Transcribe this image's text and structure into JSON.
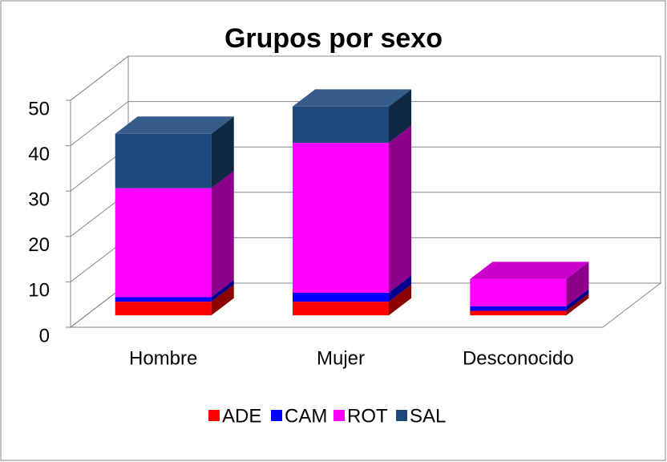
{
  "chart_data": {
    "type": "bar3d_stacked",
    "title": "Grupos por sexo",
    "categories": [
      "Hombre",
      "Mujer",
      "Desconocido"
    ],
    "series": [
      {
        "name": "ADE",
        "color": "#ff0000",
        "values": [
          3,
          3,
          1
        ]
      },
      {
        "name": "CAM",
        "color": "#0000ff",
        "values": [
          1,
          2,
          1
        ]
      },
      {
        "name": "ROT",
        "color": "#ff00ff",
        "values": [
          24,
          33,
          6
        ]
      },
      {
        "name": "SAL",
        "color": "#1f497d",
        "values": [
          12,
          8,
          0
        ]
      }
    ],
    "ylim": [
      0,
      50
    ],
    "yticks": [
      0,
      10,
      20,
      30,
      40,
      50
    ],
    "grid": true,
    "legend": "bottom"
  }
}
